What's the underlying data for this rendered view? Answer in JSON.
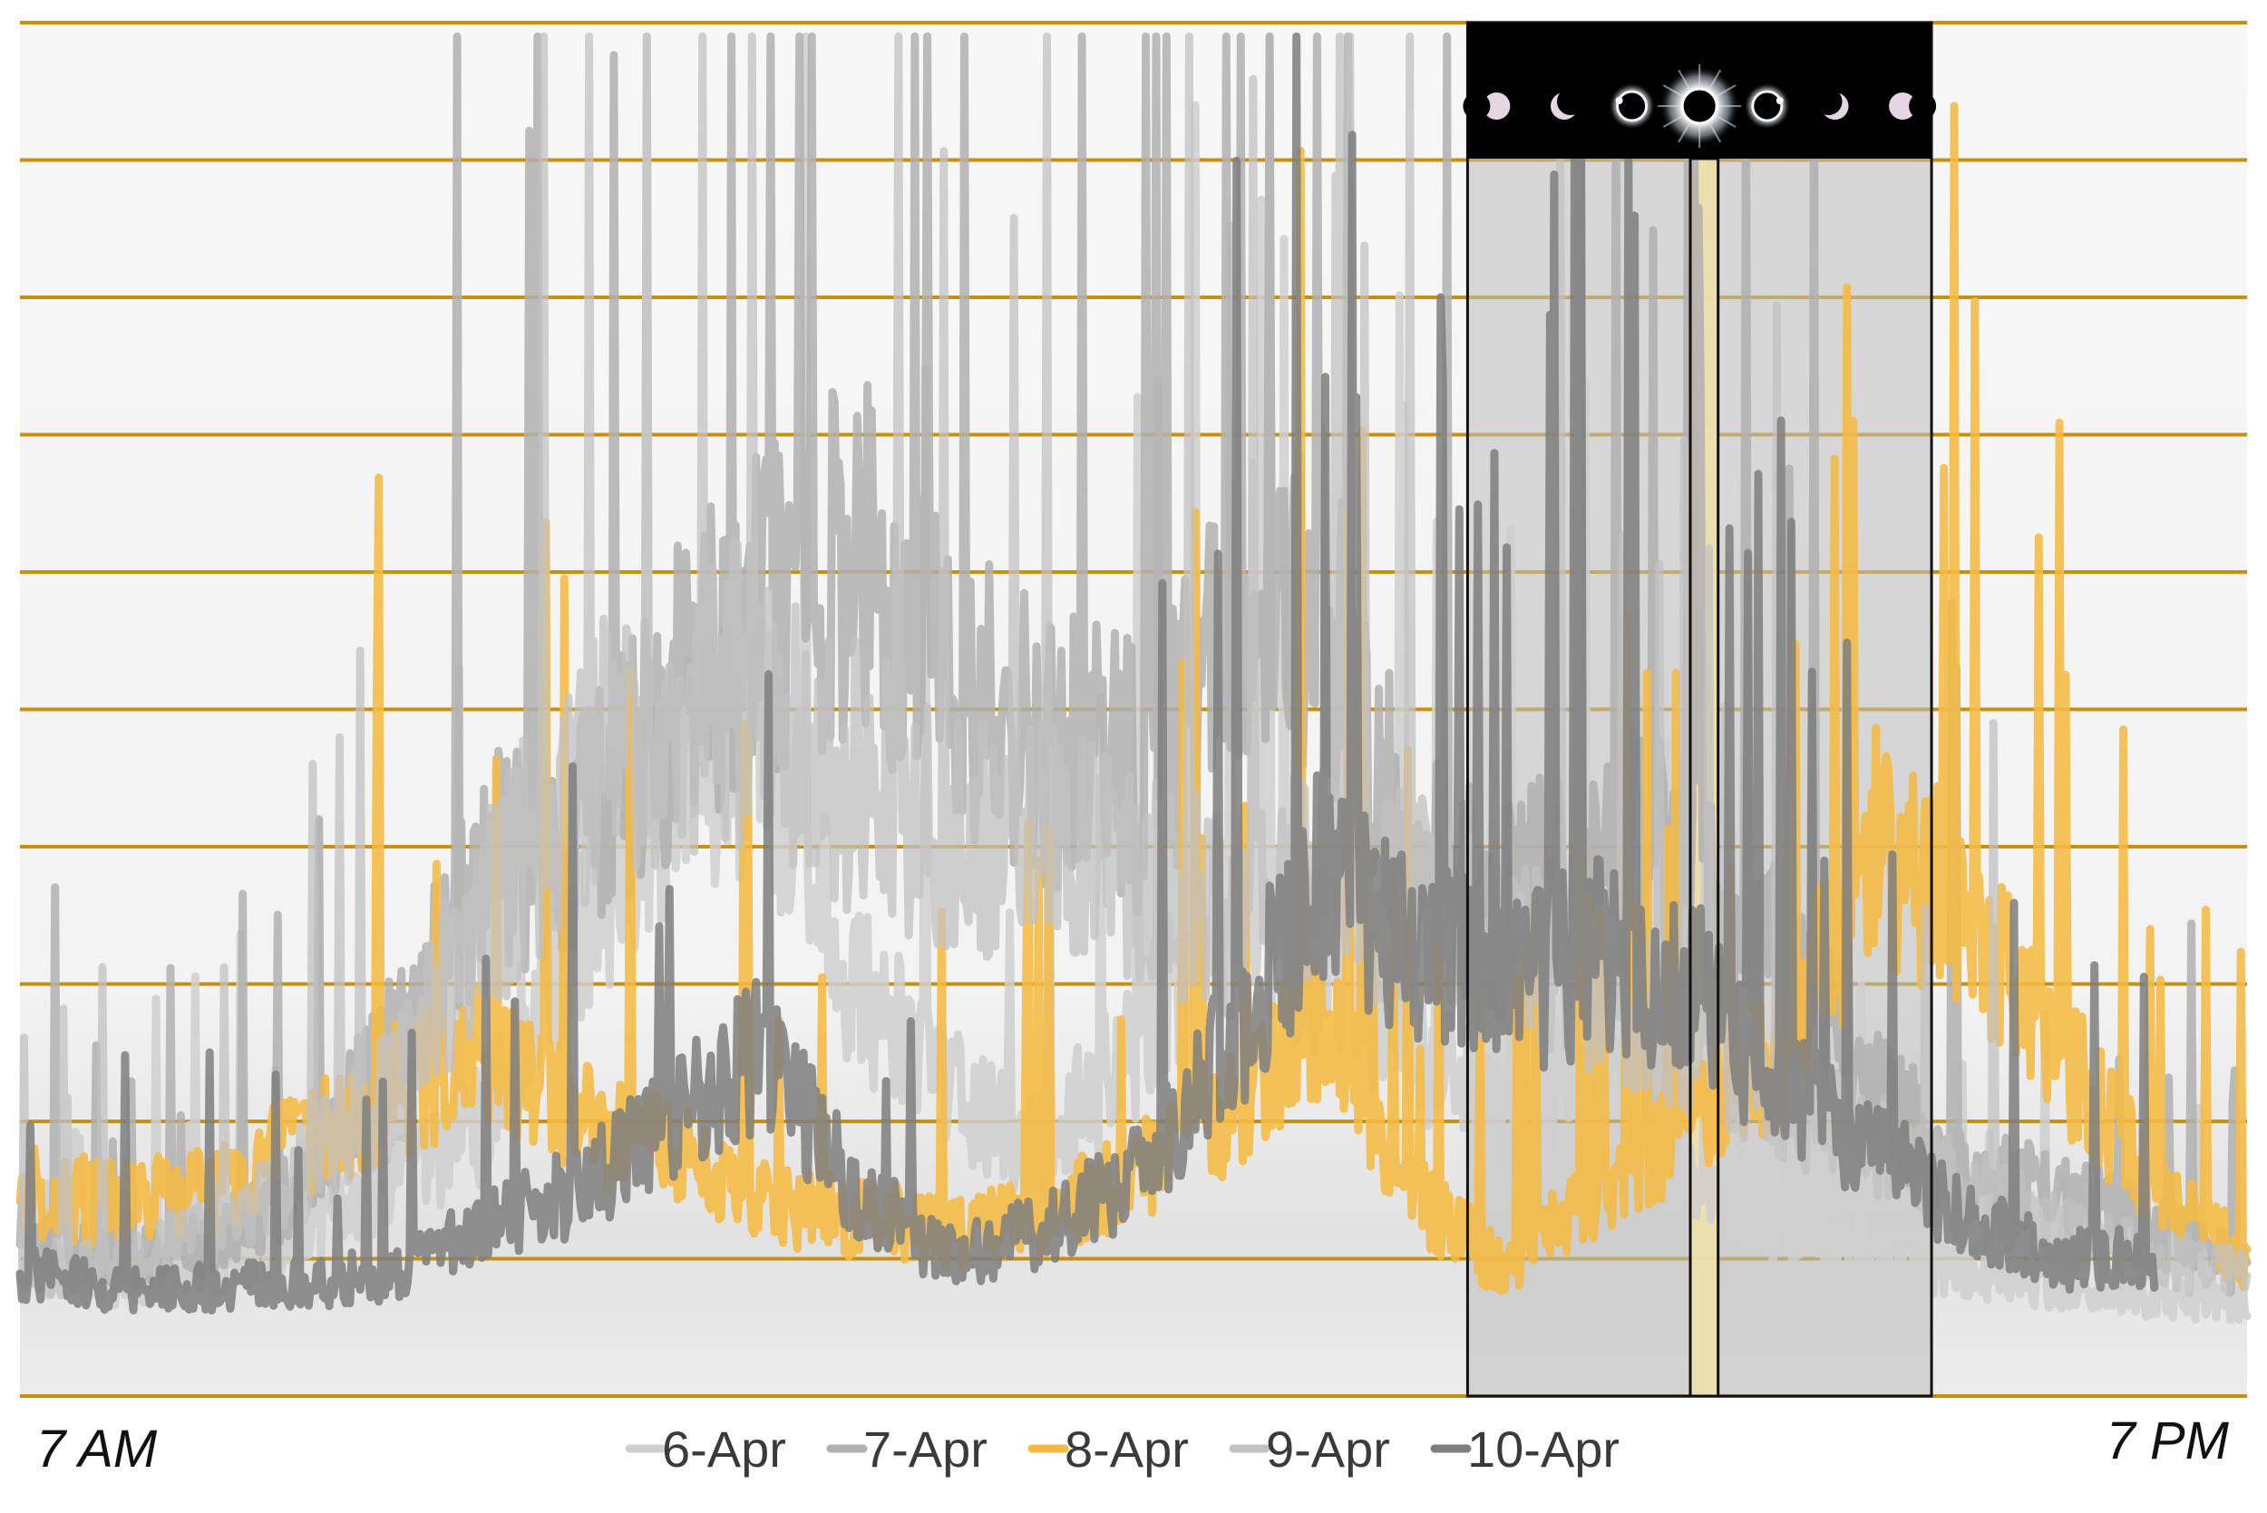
{
  "chart_data": {
    "type": "line",
    "x_start_label": "7 AM",
    "x_end_label": "7 PM",
    "title": "",
    "xlabel": "",
    "ylabel": "",
    "x_range_hours": [
      7,
      19
    ],
    "y_range": [
      0,
      10
    ],
    "grid": "horizontal",
    "grid_color": "#c8900f",
    "legend_placement": "bottom-center",
    "eclipse_shading": {
      "start_hour": 14.8,
      "end_hour": 17.3,
      "totality_start_hour": 16.0,
      "totality_end_hour": 16.15
    },
    "eclipse_phase_icons": [
      "partial-phase-icon",
      "crescent-phase-icon",
      "diamond-ring-icon",
      "totality-corona-icon",
      "diamond-ring-icon",
      "crescent-phase-icon",
      "partial-phase-icon"
    ],
    "series": [
      {
        "name": "6-Apr",
        "color": "#cfcfcf",
        "opacity": 0.85,
        "x": [
          7.0,
          7.5,
          8.0,
          8.5,
          9.0,
          9.5,
          10.0,
          10.5,
          11.0,
          11.5,
          12.0,
          12.5,
          13.0,
          13.5,
          14.0,
          14.5,
          15.0,
          15.5,
          16.0,
          16.5,
          17.0,
          17.5,
          18.0,
          18.5,
          19.0
        ],
        "y": [
          1.0,
          0.8,
          0.9,
          1.2,
          1.5,
          2.0,
          3.5,
          4.5,
          4.8,
          3.0,
          2.2,
          1.8,
          2.5,
          3.5,
          3.2,
          2.5,
          2.0,
          2.5,
          1.5,
          1.2,
          1.0,
          0.9,
          0.8,
          0.7,
          0.7
        ]
      },
      {
        "name": "7-Apr",
        "color": "#b0b0b0",
        "opacity": 0.85,
        "x": [
          7.0,
          7.5,
          8.0,
          8.5,
          9.0,
          9.5,
          10.0,
          10.5,
          11.0,
          11.5,
          12.0,
          12.5,
          13.0,
          13.5,
          14.0,
          14.5,
          15.0,
          15.5,
          16.0,
          16.5,
          17.0,
          17.5,
          18.0,
          18.5,
          19.0
        ],
        "y": [
          1.2,
          1.0,
          1.1,
          1.5,
          2.5,
          3.8,
          4.2,
          5.0,
          5.8,
          6.2,
          5.2,
          4.8,
          4.5,
          5.5,
          5.8,
          4.0,
          3.5,
          4.2,
          3.8,
          3.2,
          2.2,
          1.6,
          1.5,
          1.2,
          0.9
        ]
      },
      {
        "name": "8-Apr",
        "color": "#f5b943",
        "opacity": 0.88,
        "x": [
          7.0,
          7.5,
          8.0,
          8.5,
          9.0,
          9.5,
          10.0,
          10.5,
          11.0,
          11.5,
          12.0,
          12.5,
          13.0,
          13.5,
          14.0,
          14.5,
          15.0,
          15.5,
          16.0,
          16.5,
          17.0,
          17.5,
          18.0,
          18.5,
          19.0
        ],
        "y": [
          1.5,
          1.4,
          1.5,
          1.8,
          2.2,
          2.5,
          2.0,
          1.8,
          1.4,
          1.3,
          1.2,
          1.3,
          1.6,
          2.0,
          2.8,
          1.5,
          0.9,
          1.5,
          2.0,
          2.5,
          4.0,
          3.5,
          2.5,
          1.5,
          1.0
        ]
      },
      {
        "name": "9-Apr",
        "color": "#c2c2c2",
        "opacity": 0.75,
        "x": [
          7.0,
          7.5,
          8.0,
          8.5,
          9.0,
          9.5,
          10.0,
          10.5,
          11.0,
          11.5,
          12.0,
          12.5,
          13.0,
          13.5,
          14.0,
          14.5,
          15.0,
          15.5,
          16.0,
          16.5,
          17.0,
          17.5,
          18.0,
          18.5,
          19.0
        ],
        "y": [
          0.9,
          1.0,
          1.2,
          1.6,
          2.2,
          3.5,
          4.5,
          5.0,
          5.2,
          4.5,
          4.2,
          4.0,
          3.8,
          3.5,
          3.8,
          3.6,
          3.2,
          3.0,
          2.6,
          2.2,
          1.8,
          1.5,
          1.2,
          1.0,
          0.9
        ]
      },
      {
        "name": "10-Apr",
        "color": "#7e7e7e",
        "opacity": 0.85,
        "x": [
          7.0,
          7.5,
          8.0,
          8.5,
          9.0,
          9.5,
          10.0,
          10.5,
          11.0,
          11.5,
          12.0,
          12.5,
          13.0,
          13.5,
          14.0,
          14.5,
          15.0,
          15.5,
          16.0,
          16.5,
          17.0,
          17.5,
          18.0,
          18.5
        ],
        "y": [
          0.9,
          0.8,
          0.8,
          0.8,
          0.9,
          1.2,
          1.5,
          2.0,
          2.5,
          1.5,
          1.0,
          1.2,
          1.6,
          2.5,
          3.8,
          3.2,
          3.0,
          3.2,
          3.0,
          2.2,
          1.8,
          1.3,
          1.0,
          1.0
        ]
      }
    ]
  }
}
